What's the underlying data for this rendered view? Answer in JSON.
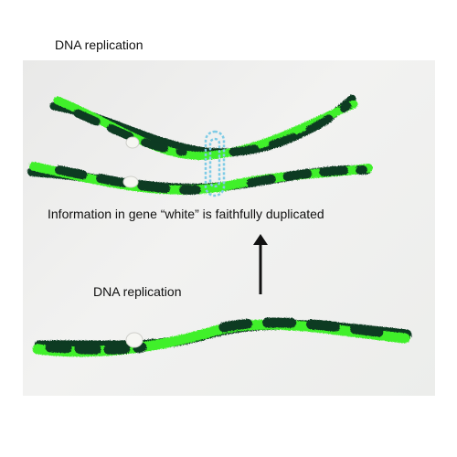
{
  "title": "DNA replication",
  "caption": "Information in gene “white” is faithfully duplicated",
  "lower_label": "DNA replication",
  "colors": {
    "green_strand": "#3ff02a",
    "dark_strand": "#0f3a22",
    "bead": "#f6f6f2",
    "clip": "#7ecbe6"
  },
  "icons": [
    "arrow-up-icon",
    "paperclip-icon"
  ]
}
